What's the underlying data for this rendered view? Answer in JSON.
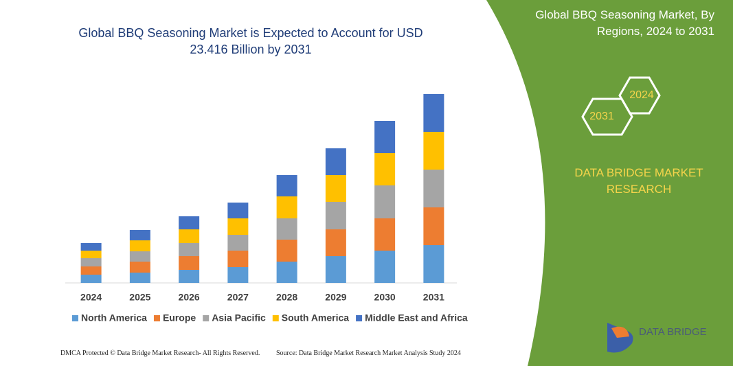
{
  "chart_data": {
    "type": "bar",
    "stacked": true,
    "title": "Global BBQ Seasoning Market is Expected to Account for USD 23.416 Billion by 2031",
    "categories": [
      "2024",
      "2025",
      "2026",
      "2027",
      "2028",
      "2029",
      "2030",
      "2031"
    ],
    "series": [
      {
        "name": "North America",
        "color": "#5b9bd5",
        "values": [
          12,
          15,
          19,
          23,
          31,
          39,
          47,
          55
        ]
      },
      {
        "name": "Europe",
        "color": "#ed7d31",
        "values": [
          12,
          16,
          20,
          24,
          32,
          39,
          47,
          55
        ]
      },
      {
        "name": "Asia Pacific",
        "color": "#a5a5a5",
        "values": [
          12,
          15,
          19,
          23,
          31,
          40,
          48,
          55
        ]
      },
      {
        "name": "South America",
        "color": "#ffc000",
        "values": [
          11,
          16,
          20,
          24,
          32,
          39,
          47,
          55
        ]
      },
      {
        "name": "Middle East and Africa",
        "color": "#4472c4",
        "values": [
          11,
          15,
          19,
          23,
          31,
          39,
          47,
          55
        ]
      }
    ]
  },
  "panel": {
    "title": "Global BBQ Seasoning Market, By Regions, 2024 to 2031",
    "hex_front": "2031",
    "hex_back": "2024",
    "brand": "DATA BRIDGE MARKET RESEARCH"
  },
  "logo": {
    "text": "DATA BRIDGE"
  },
  "footer": {
    "left": "DMCA Protected © Data Bridge Market Research- All Rights Reserved.",
    "right": "Source: Data Bridge Market Research Market Analysis Study 2024"
  }
}
